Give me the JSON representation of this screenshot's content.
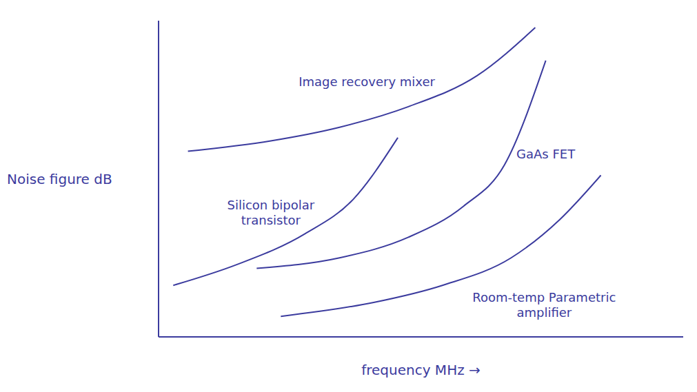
{
  "chart_data": {
    "type": "line",
    "x_label": "frequency MHz →",
    "y_label": "Noise figure dB",
    "xlim": [
      0,
      100
    ],
    "ylim": [
      0,
      100
    ],
    "tick_labels": false,
    "grid": false,
    "series": [
      {
        "name": "Image recovery mixer",
        "color": "#3b3b9e",
        "x": [
          5.6,
          21.4,
          34.5,
          47.6,
          60.7,
          71.8
        ],
        "values": [
          58.7,
          62,
          66.3,
          72.8,
          82.6,
          97.8
        ]
      },
      {
        "name": "Silicon bipolar transistor",
        "color": "#3b3b9e",
        "x": [
          2.8,
          14.8,
          27.9,
          37.1,
          45.6
        ],
        "values": [
          16.3,
          22.8,
          32.6,
          43.5,
          63
        ]
      },
      {
        "name": "GaAs FET",
        "color": "#3b3b9e",
        "x": [
          18.7,
          34.5,
          47.6,
          58.1,
          65.9,
          73.8
        ],
        "values": [
          21.7,
          25,
          31.5,
          41.3,
          54.3,
          87.4
        ]
      },
      {
        "name": "Room-temp Parametric amplifier",
        "color": "#3b3b9e",
        "x": [
          23.3,
          41,
          54.1,
          67.2,
          76.4,
          84.3
        ],
        "values": [
          6.5,
          10.9,
          16.3,
          25,
          37,
          51.1
        ]
      }
    ]
  }
}
